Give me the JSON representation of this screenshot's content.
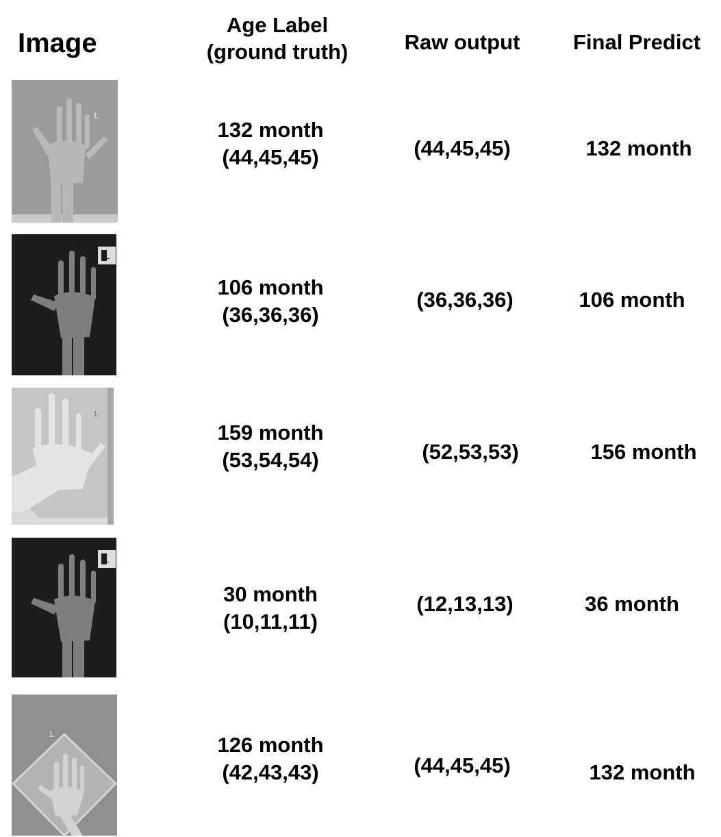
{
  "headers": {
    "image": "Image",
    "age_label_line1": "Age Label",
    "age_label_line2": "(ground truth)",
    "raw_output": "Raw output",
    "final_predict": "Final Predict"
  },
  "rows": [
    {
      "image_text": "L",
      "age_month": "132 month",
      "age_triplet": "(44,45,45)",
      "raw_output": "(44,45,45)",
      "final_predict": "132 month"
    },
    {
      "image_text": "L",
      "age_month": "106 month",
      "age_triplet": "(36,36,36)",
      "raw_output": "(36,36,36)",
      "final_predict": "106 month"
    },
    {
      "image_text": "L",
      "age_month": "159 month",
      "age_triplet": "(53,54,54)",
      "raw_output": "(52,53,53)",
      "final_predict": "156 month"
    },
    {
      "image_text": "L",
      "age_month": "30 month",
      "age_triplet": "(10,11,11)",
      "raw_output": "(12,13,13)",
      "final_predict": "36 month"
    },
    {
      "image_text": "L",
      "age_month": "126 month",
      "age_triplet": "(42,43,43)",
      "raw_output": "(44,45,45)",
      "final_predict": "132 month"
    }
  ]
}
